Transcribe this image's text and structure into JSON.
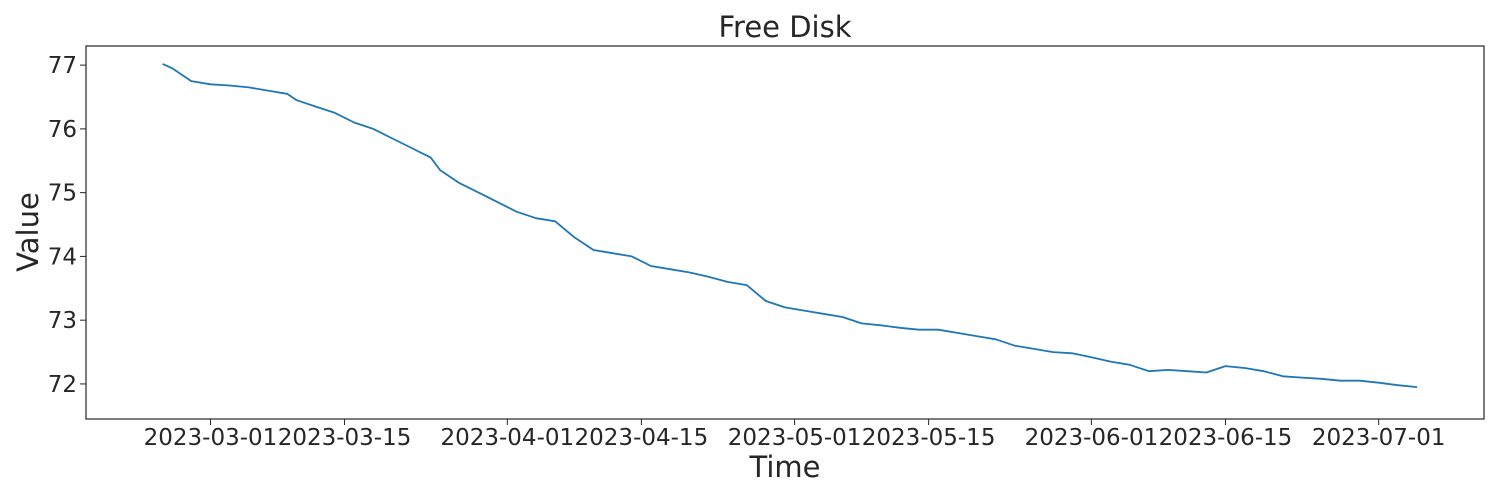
{
  "chart_data": {
    "type": "line",
    "title": "Free Disk",
    "xlabel": "Time",
    "ylabel": "Value",
    "x_ticks": [
      "2023-03-01",
      "2023-03-15",
      "2023-04-01",
      "2023-04-15",
      "2023-05-01",
      "2023-05-15",
      "2023-06-01",
      "2023-06-15",
      "2023-07-01"
    ],
    "y_ticks": [
      72,
      73,
      74,
      75,
      76,
      77
    ],
    "xlim": [
      "2023-02-16",
      "2023-07-12"
    ],
    "ylim": [
      71.45,
      77.3
    ],
    "grid": false,
    "line_color": "#1f77b4",
    "series": [
      {
        "x": [
          "2023-02-24",
          "2023-02-25",
          "2023-02-26",
          "2023-02-27",
          "2023-03-01",
          "2023-03-03",
          "2023-03-05",
          "2023-03-07",
          "2023-03-09",
          "2023-03-10",
          "2023-03-12",
          "2023-03-14",
          "2023-03-16",
          "2023-03-18",
          "2023-03-20",
          "2023-03-22",
          "2023-03-24",
          "2023-03-25",
          "2023-03-27",
          "2023-03-29",
          "2023-03-31",
          "2023-04-02",
          "2023-04-04",
          "2023-04-06",
          "2023-04-08",
          "2023-04-10",
          "2023-04-12",
          "2023-04-14",
          "2023-04-16",
          "2023-04-18",
          "2023-04-20",
          "2023-04-22",
          "2023-04-24",
          "2023-04-26",
          "2023-04-28",
          "2023-04-30",
          "2023-05-02",
          "2023-05-04",
          "2023-05-06",
          "2023-05-08",
          "2023-05-10",
          "2023-05-12",
          "2023-05-14",
          "2023-05-16",
          "2023-05-18",
          "2023-05-20",
          "2023-05-22",
          "2023-05-24",
          "2023-05-26",
          "2023-05-28",
          "2023-05-30",
          "2023-06-01",
          "2023-06-03",
          "2023-06-05",
          "2023-06-07",
          "2023-06-09",
          "2023-06-11",
          "2023-06-13",
          "2023-06-15",
          "2023-06-17",
          "2023-06-19",
          "2023-06-21",
          "2023-06-23",
          "2023-06-25",
          "2023-06-27",
          "2023-06-29",
          "2023-07-01",
          "2023-07-03",
          "2023-07-05"
        ],
        "values": [
          77.02,
          76.95,
          76.85,
          76.75,
          76.7,
          76.68,
          76.65,
          76.6,
          76.55,
          76.45,
          76.35,
          76.25,
          76.1,
          76.0,
          75.85,
          75.7,
          75.55,
          75.35,
          75.15,
          75.0,
          74.85,
          74.7,
          74.6,
          74.55,
          74.3,
          74.1,
          74.05,
          74.0,
          73.85,
          73.8,
          73.75,
          73.68,
          73.6,
          73.55,
          73.3,
          73.2,
          73.15,
          73.1,
          73.05,
          72.95,
          72.92,
          72.88,
          72.85,
          72.85,
          72.8,
          72.75,
          72.7,
          72.6,
          72.55,
          72.5,
          72.48,
          72.42,
          72.35,
          72.3,
          72.2,
          72.22,
          72.2,
          72.18,
          72.28,
          72.25,
          72.2,
          72.12,
          72.1,
          72.08,
          72.05,
          72.05,
          72.02,
          71.98,
          71.95
        ]
      }
    ]
  }
}
